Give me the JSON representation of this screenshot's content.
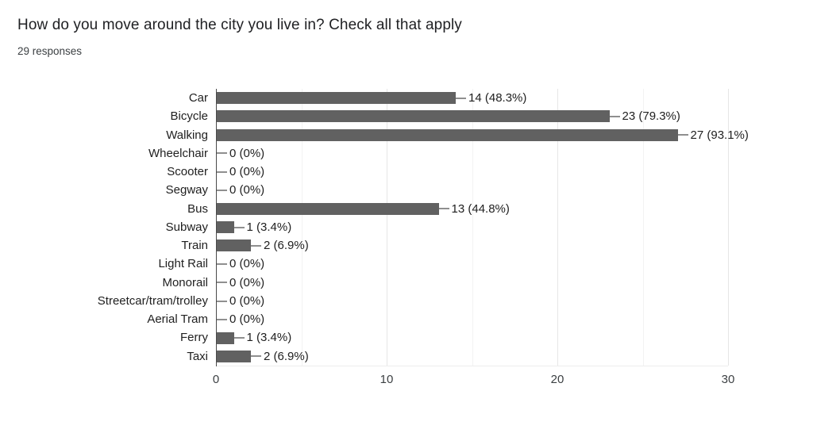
{
  "header": {
    "title": "How do you move around the city you live in? Check all that apply",
    "responses": "29 responses"
  },
  "chart_data": {
    "type": "bar",
    "orientation": "horizontal",
    "title": "How do you move around the city you live in? Check all that apply",
    "subtitle": "29 responses",
    "categories": [
      "Car",
      "Bicycle",
      "Walking",
      "Wheelchair",
      "Scooter",
      "Segway",
      "Bus",
      "Subway",
      "Train",
      "Light Rail",
      "Monorail",
      "Streetcar/tram/trolley",
      "Aerial Tram",
      "Ferry",
      "Taxi"
    ],
    "values": [
      14,
      23,
      27,
      0,
      0,
      0,
      13,
      1,
      2,
      0,
      0,
      0,
      0,
      1,
      2
    ],
    "percentages": [
      48.3,
      79.3,
      93.1,
      0,
      0,
      0,
      44.8,
      3.4,
      6.9,
      0,
      0,
      0,
      0,
      3.4,
      6.9
    ],
    "value_labels": [
      "14 (48.3%)",
      "23 (79.3%)",
      "27 (93.1%)",
      "0 (0%)",
      "0 (0%)",
      "0 (0%)",
      "13 (44.8%)",
      "1 (3.4%)",
      "2 (6.9%)",
      "0 (0%)",
      "0 (0%)",
      "0 (0%)",
      "0 (0%)",
      "1 (3.4%)",
      "2 (6.9%)"
    ],
    "xlim": [
      0,
      30
    ],
    "x_ticks": [
      "0",
      "10",
      "20",
      "30"
    ],
    "x_tick_values": [
      0,
      10,
      20,
      30
    ],
    "grid_minor_values": [
      5,
      15,
      25
    ],
    "grid_on": true,
    "legend": "none",
    "bar_color": "#616161",
    "connector_color": "#8f8f8f",
    "axis_color": "#4a4a4a",
    "gridline_color": "#e6e6e6"
  }
}
